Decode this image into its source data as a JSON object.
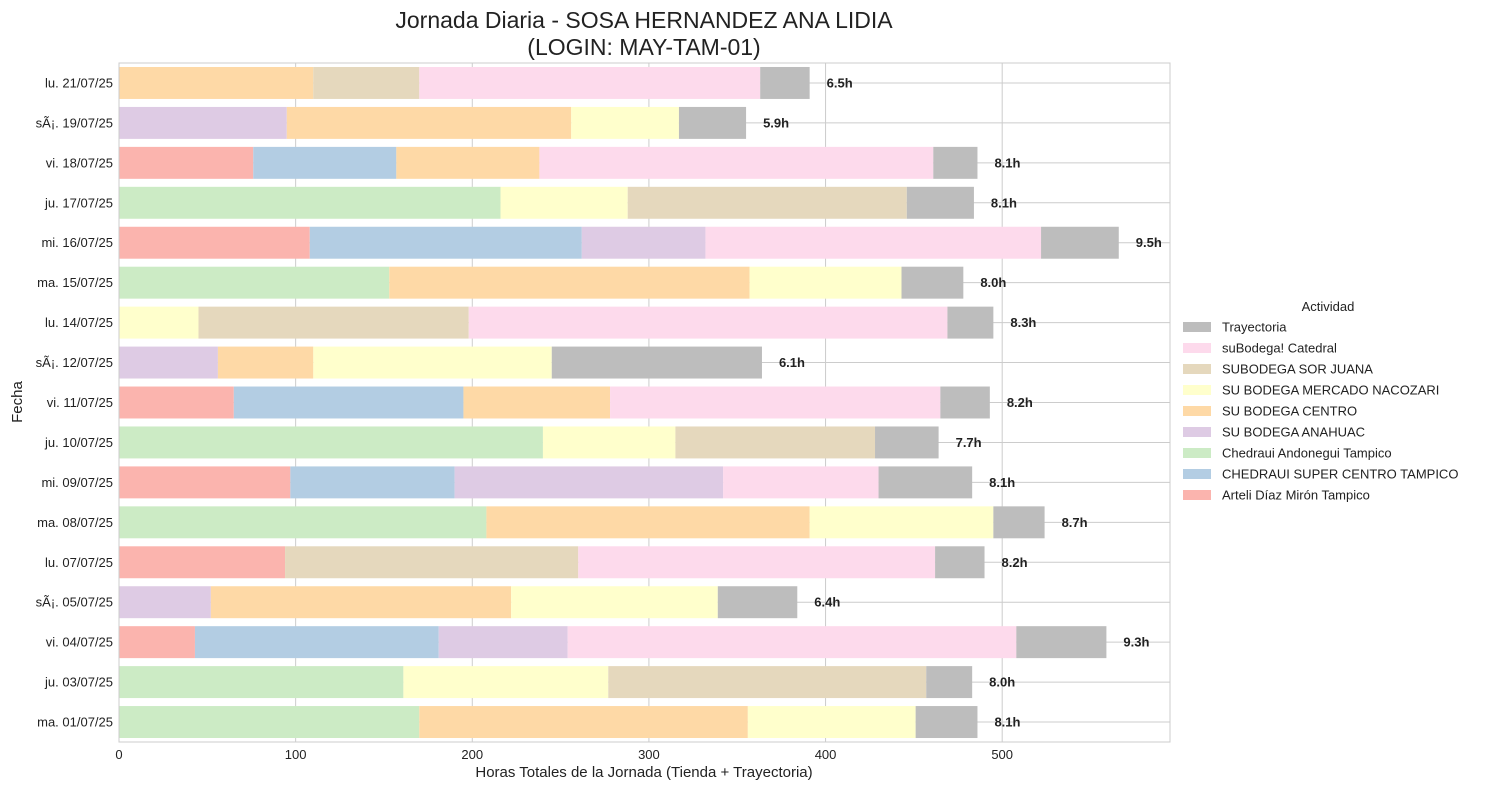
{
  "chart_data": {
    "type": "bar",
    "orientation": "horizontal",
    "stacked": true,
    "title": "Jornada Diaria - SOSA HERNANDEZ ANA LIDIA",
    "subtitle": "(LOGIN: MAY-TAM-01)",
    "xlabel": "Horas Totales de la Jornada (Tienda + Trayectoria)",
    "ylabel": "Fecha",
    "xlim": [
      0,
      595
    ],
    "xticks": [
      0,
      100,
      200,
      300,
      400,
      500
    ],
    "grid": true,
    "legend_title": "Actividad",
    "legend_position": "right",
    "categories": [
      "lu. 21/07/25",
      "sÃ¡. 19/07/25",
      "vi. 18/07/25",
      "ju. 17/07/25",
      "mi. 16/07/25",
      "ma. 15/07/25",
      "lu. 14/07/25",
      "sÃ¡. 12/07/25",
      "vi. 11/07/25",
      "ju. 10/07/25",
      "mi. 09/07/25",
      "ma. 08/07/25",
      "lu. 07/07/25",
      "sÃ¡. 05/07/25",
      "vi. 04/07/25",
      "ju. 03/07/25",
      "ma. 01/07/25"
    ],
    "stack_order": [
      "Arteli Díaz Mirón Tampico",
      "CHEDRAUI SUPER CENTRO TAMPICO",
      "Chedraui Andonegui Tampico",
      "SU BODEGA ANAHUAC",
      "SU BODEGA CENTRO",
      "SU BODEGA MERCADO NACOZARI",
      "SUBODEGA SOR JUANA",
      "suBodega! Catedral",
      "Trayectoria"
    ],
    "legend_order": [
      "Trayectoria",
      "suBodega! Catedral",
      "SUBODEGA SOR JUANA",
      "SU BODEGA MERCADO NACOZARI",
      "SU BODEGA CENTRO",
      "SU BODEGA ANAHUAC",
      "Chedraui Andonegui Tampico",
      "CHEDRAUI SUPER CENTRO TAMPICO",
      "Arteli Díaz Mirón Tampico"
    ],
    "series": [
      {
        "name": "Arteli Díaz Mirón Tampico",
        "color": "#fbb4ae",
        "values": [
          0,
          0,
          76,
          0,
          108,
          0,
          0,
          0,
          65,
          0,
          97,
          0,
          94,
          0,
          43,
          0,
          0
        ]
      },
      {
        "name": "CHEDRAUI SUPER CENTRO TAMPICO",
        "color": "#b3cde3",
        "values": [
          0,
          0,
          81,
          0,
          154,
          0,
          0,
          0,
          130,
          0,
          93,
          0,
          0,
          0,
          138,
          0,
          0
        ]
      },
      {
        "name": "Chedraui Andonegui Tampico",
        "color": "#ccebc5",
        "values": [
          0,
          0,
          0,
          216,
          0,
          153,
          0,
          0,
          0,
          240,
          0,
          208,
          0,
          0,
          0,
          161,
          170
        ]
      },
      {
        "name": "SU BODEGA ANAHUAC",
        "color": "#decbe4",
        "values": [
          0,
          95,
          0,
          0,
          70,
          0,
          0,
          56,
          0,
          0,
          152,
          0,
          0,
          52,
          73,
          0,
          0
        ]
      },
      {
        "name": "SU BODEGA CENTRO",
        "color": "#fed9a6",
        "values": [
          110,
          161,
          81,
          0,
          0,
          204,
          0,
          54,
          83,
          0,
          0,
          183,
          0,
          170,
          0,
          0,
          186
        ]
      },
      {
        "name": "SU BODEGA MERCADO NACOZARI",
        "color": "#ffffcc",
        "values": [
          0,
          61,
          0,
          72,
          0,
          86,
          45,
          135,
          0,
          75,
          0,
          104,
          0,
          117,
          0,
          116,
          95
        ]
      },
      {
        "name": "SUBODEGA SOR JUANA",
        "color": "#e5d8bd",
        "values": [
          60,
          0,
          0,
          158,
          0,
          0,
          153,
          0,
          0,
          113,
          0,
          0,
          166,
          0,
          0,
          180,
          0
        ]
      },
      {
        "name": "suBodega! Catedral",
        "color": "#fddaec",
        "values": [
          193,
          0,
          223,
          0,
          190,
          0,
          271,
          0,
          187,
          0,
          88,
          0,
          202,
          0,
          254,
          0,
          0
        ]
      },
      {
        "name": "Trayectoria",
        "color": "#bdbdbd",
        "values": [
          28,
          38,
          25,
          38,
          44,
          35,
          26,
          119,
          28,
          36,
          53,
          29,
          28,
          45,
          51,
          26,
          35
        ]
      }
    ],
    "totals_labels": [
      "6.5h",
      "5.9h",
      "8.1h",
      "8.1h",
      "9.5h",
      "8.0h",
      "8.3h",
      "6.1h",
      "8.2h",
      "7.7h",
      "8.1h",
      "8.7h",
      "8.2h",
      "6.4h",
      "9.3h",
      "8.0h",
      "8.1h"
    ]
  }
}
